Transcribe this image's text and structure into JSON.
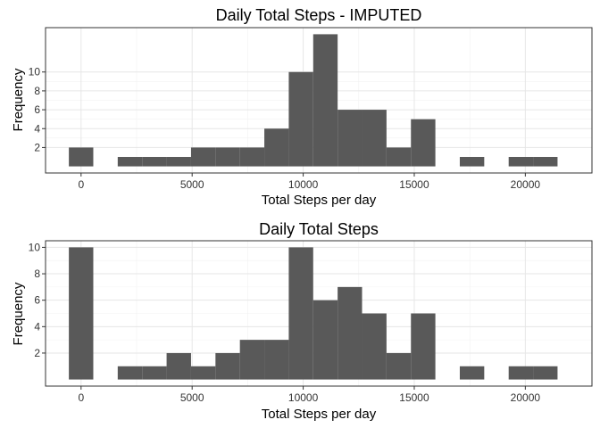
{
  "chart_data": [
    {
      "type": "bar",
      "subtype": "histogram",
      "title": "Daily Total Steps - IMPUTED",
      "xlabel": "Total Steps per day",
      "ylabel": "Frequency",
      "bin_width": 1100,
      "bin_starts": [
        -550,
        550,
        1650,
        2750,
        3850,
        4950,
        6050,
        7150,
        8250,
        9350,
        10450,
        11550,
        12650,
        13750,
        14850,
        15950,
        17050,
        18150,
        19250,
        20350
      ],
      "values": [
        2,
        0,
        1,
        1,
        1,
        2,
        2,
        2,
        4,
        10,
        14,
        6,
        6,
        2,
        5,
        0,
        1,
        0,
        1,
        1
      ],
      "xticks": [
        0,
        5000,
        10000,
        15000,
        20000
      ],
      "xtick_labels": [
        "0",
        "5000",
        "10000",
        "15000",
        "20000"
      ],
      "yticks": [
        2,
        4,
        6,
        8,
        10
      ],
      "ytick_labels": [
        "2",
        "4",
        "6",
        "8",
        "10"
      ],
      "xlim": [
        -1600,
        23000
      ],
      "ylim": [
        -0.7,
        14.7
      ],
      "bar_color": "#595959",
      "grid": true
    },
    {
      "type": "bar",
      "subtype": "histogram",
      "title": "Daily Total Steps",
      "xlabel": "Total Steps per day",
      "ylabel": "Frequency",
      "bin_width": 1100,
      "bin_starts": [
        -550,
        550,
        1650,
        2750,
        3850,
        4950,
        6050,
        7150,
        8250,
        9350,
        10450,
        11550,
        12650,
        13750,
        14850,
        15950,
        17050,
        18150,
        19250,
        20350
      ],
      "values": [
        10,
        0,
        1,
        1,
        2,
        1,
        2,
        3,
        3,
        10,
        6,
        7,
        5,
        2,
        5,
        0,
        1,
        0,
        1,
        1
      ],
      "xticks": [
        0,
        5000,
        10000,
        15000,
        20000
      ],
      "xtick_labels": [
        "0",
        "5000",
        "10000",
        "15000",
        "20000"
      ],
      "yticks": [
        2,
        4,
        6,
        8,
        10
      ],
      "ytick_labels": [
        "2",
        "4",
        "6",
        "8",
        "10"
      ],
      "xlim": [
        -1600,
        23000
      ],
      "ylim": [
        -0.5,
        10.5
      ],
      "bar_color": "#595959",
      "grid": true
    }
  ]
}
